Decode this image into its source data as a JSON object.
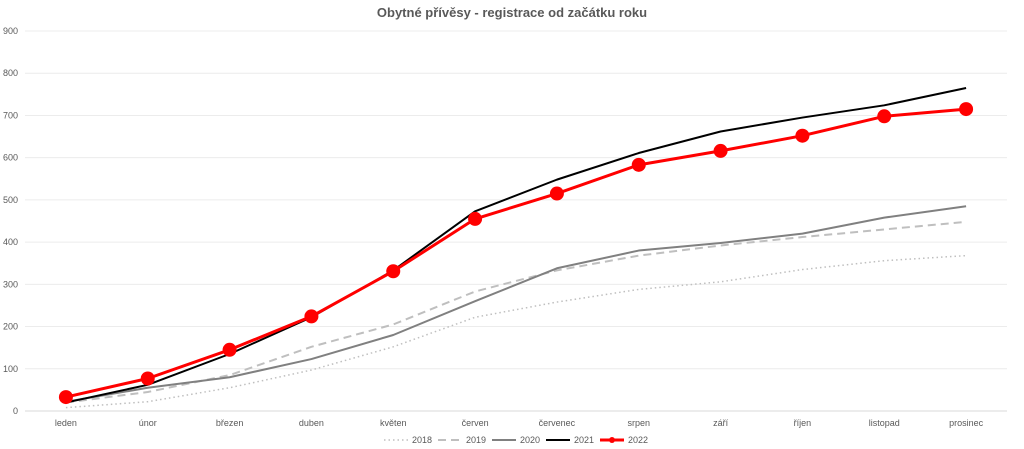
{
  "chart_data": {
    "type": "line",
    "title": "Obytné přívěsy - registrace od začátku roku",
    "categories": [
      "leden",
      "únor",
      "březen",
      "duben",
      "květen",
      "červen",
      "červenec",
      "srpen",
      "září",
      "říjen",
      "listopad",
      "prosinec"
    ],
    "ylim": [
      0,
      900
    ],
    "yticks": [
      0,
      100,
      200,
      300,
      400,
      500,
      600,
      700,
      800,
      900
    ],
    "grid": true,
    "legend": "bottom",
    "series": [
      {
        "name": "2018",
        "color": "#bfbfbf",
        "style": "dotted",
        "values": [
          8,
          22,
          55,
          97,
          152,
          222,
          258,
          288,
          306,
          335,
          356,
          368
        ]
      },
      {
        "name": "2019",
        "color": "#bfbfbf",
        "style": "dashed",
        "values": [
          20,
          45,
          85,
          152,
          205,
          283,
          333,
          368,
          392,
          412,
          430,
          448
        ]
      },
      {
        "name": "2020",
        "color": "#808080",
        "style": "solid",
        "values": [
          22,
          55,
          80,
          123,
          180,
          260,
          338,
          380,
          398,
          420,
          458,
          485
        ]
      },
      {
        "name": "2021",
        "color": "#000000",
        "style": "solid",
        "values": [
          20,
          62,
          135,
          222,
          333,
          473,
          548,
          611,
          662,
          695,
          724,
          765
        ]
      },
      {
        "name": "2022",
        "color": "#ff0000",
        "style": "marker",
        "values": [
          33,
          77,
          145,
          224,
          331,
          455,
          515,
          583,
          616,
          652,
          698,
          715
        ]
      }
    ]
  }
}
